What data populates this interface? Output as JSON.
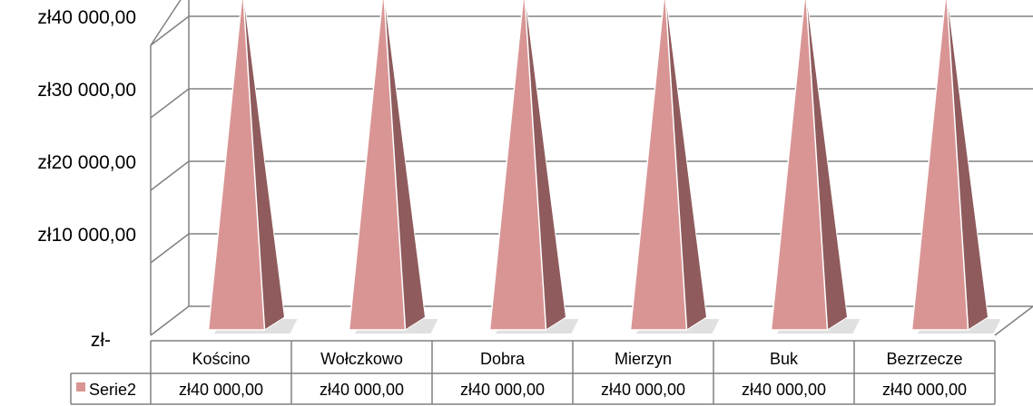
{
  "chart_data": {
    "type": "bar",
    "style": "3d-pyramid",
    "categories": [
      "Kościno",
      "Wołczkowo",
      "Dobra",
      "Mierzyn",
      "Buk",
      "Bezrzecze"
    ],
    "series": [
      {
        "name": "Serie2",
        "values": [
          40000,
          40000,
          40000,
          40000,
          40000,
          40000
        ],
        "value_labels": [
          "zł40 000,00",
          "zł40 000,00",
          "zł40 000,00",
          "zł40 000,00",
          "zł40 000,00",
          "zł40 000,00"
        ],
        "color": "#d99594"
      }
    ],
    "ylim": [
      0,
      40000
    ],
    "yticks": [
      0,
      10000,
      20000,
      30000,
      40000
    ],
    "ytick_labels": [
      "zł-",
      "zł10 000,00",
      "zł20 000,00",
      "zł30 000,00",
      "zł40 000,00"
    ],
    "grid": true,
    "data_table": true,
    "legend_placement": "in data table"
  },
  "colors": {
    "pyramid_front": "#d99594",
    "pyramid_side": "#8f5b5c",
    "grid": "#808080",
    "table_border": "#808080",
    "legend_key": "#d99594"
  }
}
